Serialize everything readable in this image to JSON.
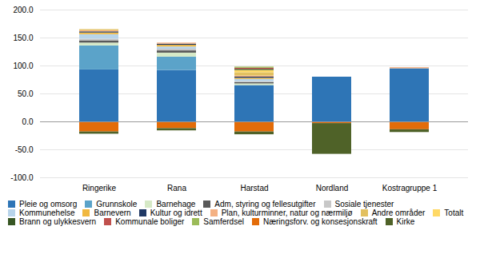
{
  "chart_data": {
    "type": "bar",
    "stacked": true,
    "grid": true,
    "legend": "bottom",
    "categories": [
      "Ringerike",
      "Rana",
      "Harstad",
      "Nordland",
      "Kostragruppe 1"
    ],
    "series": [
      {
        "name": "Pleie og omsorg",
        "color": "#2e75b6",
        "values": [
          93,
          92,
          65,
          80,
          95
        ]
      },
      {
        "name": "Grunnskole",
        "color": "#5ba3c9",
        "values": [
          43,
          24,
          0,
          0,
          0
        ]
      },
      {
        "name": "Barnehage",
        "color": "#d6e9c6",
        "values": [
          5,
          7,
          3,
          0,
          0
        ]
      },
      {
        "name": "Adm, styring og fellesutgifter",
        "color": "#595959",
        "values": [
          4,
          4,
          2,
          0,
          0
        ]
      },
      {
        "name": "Sosiale tjenester",
        "color": "#c8c8c8",
        "values": [
          3,
          3,
          2,
          0,
          0
        ]
      },
      {
        "name": "Kommunehelse",
        "color": "#b8d4ea",
        "values": [
          8,
          4,
          4,
          0,
          0
        ]
      },
      {
        "name": "Barnevern",
        "color": "#f0b840",
        "values": [
          3,
          3,
          2,
          0,
          0
        ]
      },
      {
        "name": "Kultur og idrett",
        "color": "#1f3864",
        "values": [
          2,
          2,
          2,
          0,
          0
        ]
      },
      {
        "name": "Plan, kulturminner, natur og nærmiljø",
        "color": "#f4b183",
        "values": [
          2,
          2,
          2,
          0,
          2
        ]
      },
      {
        "name": "Andre områder",
        "color": "#e2c060",
        "values": [
          2,
          0,
          6,
          0,
          0
        ]
      },
      {
        "name": "Totalt",
        "color": "#ffd966",
        "values": [
          0,
          0,
          4,
          0,
          0
        ]
      },
      {
        "name": "Brann og ulykkesvern",
        "color": "#375623",
        "values": [
          0,
          0,
          2,
          0,
          0
        ]
      },
      {
        "name": "Kommunale boliger",
        "color": "#c0504d",
        "values": [
          0,
          0,
          2,
          0,
          0
        ]
      },
      {
        "name": "Samferdsel",
        "color": "#9bbb59",
        "values": [
          0,
          0,
          2,
          0,
          0
        ]
      },
      {
        "name": "Næringsforv. og konsesjonskraft",
        "color": "#e36c09",
        "values": [
          -18,
          -12,
          -18,
          -3,
          -14
        ]
      },
      {
        "name": "Kirke",
        "color": "#4f6228",
        "values": [
          -4,
          -4,
          -5,
          -55,
          -5
        ]
      }
    ],
    "ylim": [
      -100,
      200
    ],
    "yticks": [
      {
        "value": -100,
        "label": "-100.0"
      },
      {
        "value": -50,
        "label": "-50.0"
      },
      {
        "value": 0,
        "label": "0.0"
      },
      {
        "value": 50,
        "label": "50.0"
      },
      {
        "value": 100,
        "label": "100.0"
      },
      {
        "value": 150,
        "label": "150.0"
      },
      {
        "value": 200,
        "label": "200.0"
      }
    ]
  }
}
